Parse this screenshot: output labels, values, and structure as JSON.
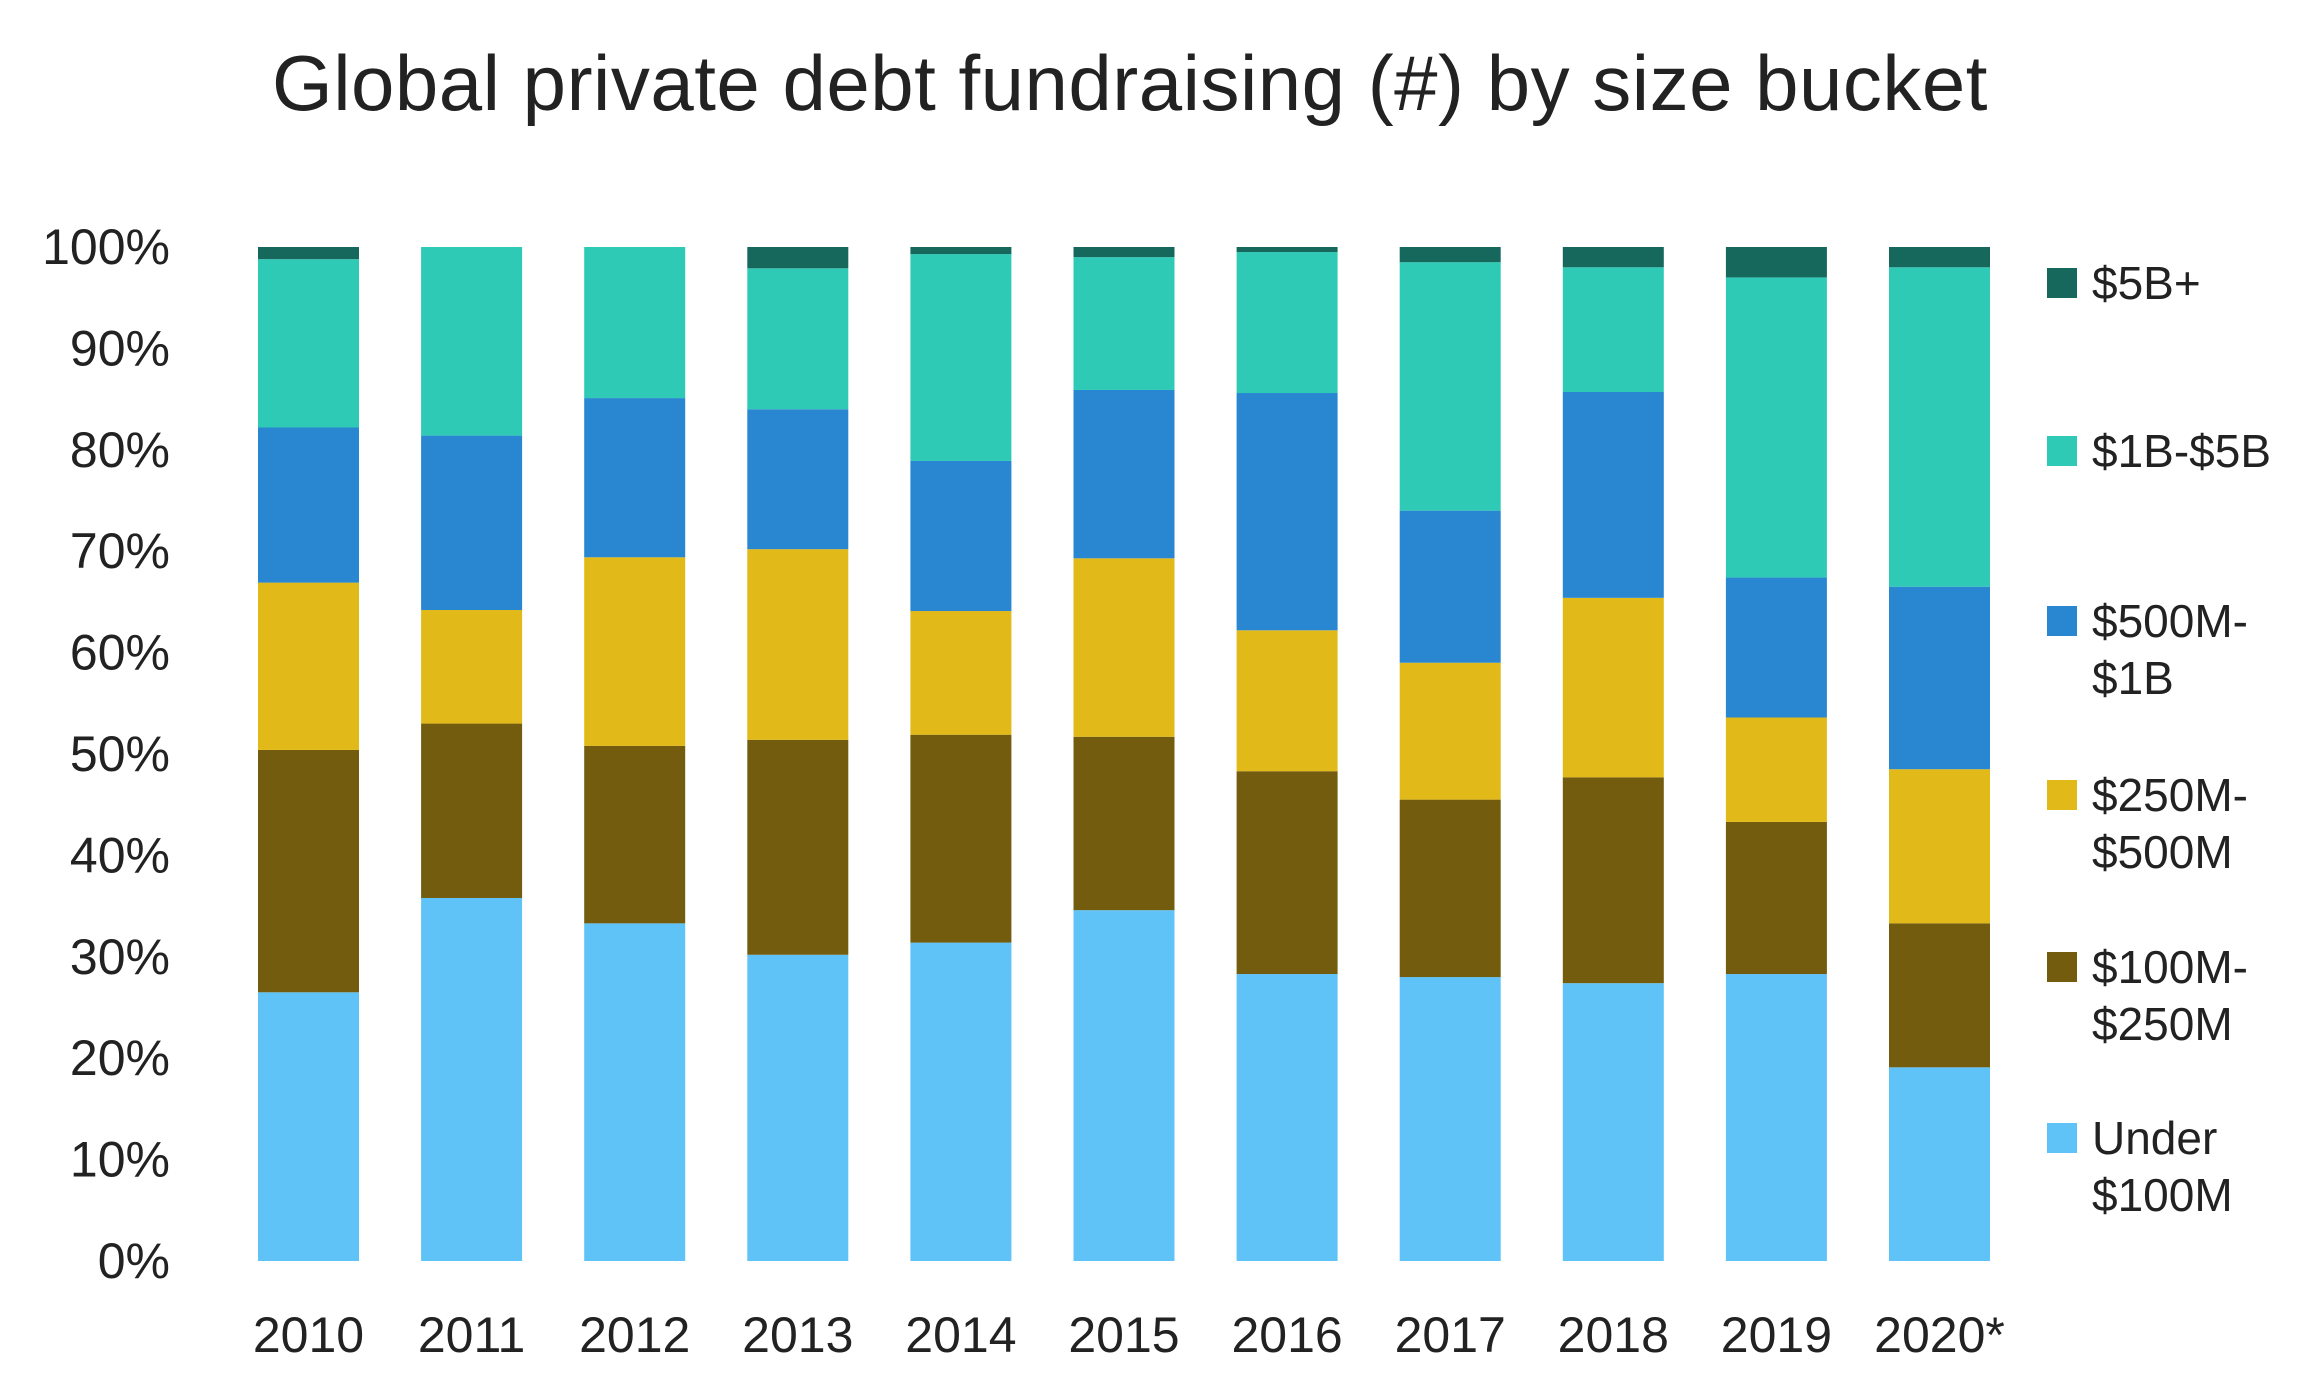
{
  "chart_data": {
    "type": "bar",
    "stacked": true,
    "percent_stacked": true,
    "title": "Global private debt fundraising (#) by size bucket",
    "xlabel": "",
    "ylabel": "",
    "ylim": [
      0,
      100
    ],
    "y_ticks": [
      "0%",
      "10%",
      "20%",
      "30%",
      "40%",
      "50%",
      "60%",
      "70%",
      "80%",
      "90%",
      "100%"
    ],
    "grid": false,
    "legend_position": "right",
    "categories": [
      "2010",
      "2011",
      "2012",
      "2013",
      "2014",
      "2015",
      "2016",
      "2017",
      "2018",
      "2019",
      "2020*"
    ],
    "series": [
      {
        "name": "Under $100M",
        "legend_lines": [
          "Under",
          "$100M"
        ],
        "color": "#5fc3f8",
        "values": [
          26.5,
          35.8,
          33.3,
          30.2,
          31.4,
          34.6,
          28.3,
          28.0,
          27.4,
          28.3,
          19.1
        ]
      },
      {
        "name": "$100M-$250M",
        "legend_lines": [
          "$100M-",
          "$250M"
        ],
        "color": "#735c0d",
        "values": [
          23.9,
          17.2,
          17.5,
          21.2,
          20.5,
          17.1,
          20.0,
          17.5,
          20.3,
          15.0,
          14.2
        ]
      },
      {
        "name": "$250M-$500M",
        "legend_lines": [
          "$250M-",
          "$500M"
        ],
        "color": "#e1b918",
        "values": [
          16.5,
          11.2,
          18.6,
          18.8,
          12.2,
          17.6,
          13.9,
          13.5,
          17.7,
          10.3,
          15.2
        ]
      },
      {
        "name": "$500M-$1B",
        "legend_lines": [
          "$500M-",
          "$1B"
        ],
        "color": "#2987d2",
        "values": [
          15.3,
          17.2,
          15.7,
          13.8,
          14.8,
          16.6,
          23.4,
          15.0,
          20.3,
          13.8,
          18.0
        ]
      },
      {
        "name": "$1B-$5B",
        "legend_lines": [
          "$1B-$5B"
        ],
        "color": "#2fcab6",
        "values": [
          16.6,
          18.6,
          14.9,
          13.9,
          20.4,
          13.1,
          13.9,
          24.5,
          12.3,
          29.6,
          31.5
        ]
      },
      {
        "name": "$5B+",
        "legend_lines": [
          "$5B+"
        ],
        "color": "#17685c",
        "values": [
          1.2,
          0.0,
          0.0,
          2.1,
          0.7,
          1.0,
          0.5,
          1.5,
          2.0,
          3.0,
          2.0
        ]
      }
    ]
  }
}
